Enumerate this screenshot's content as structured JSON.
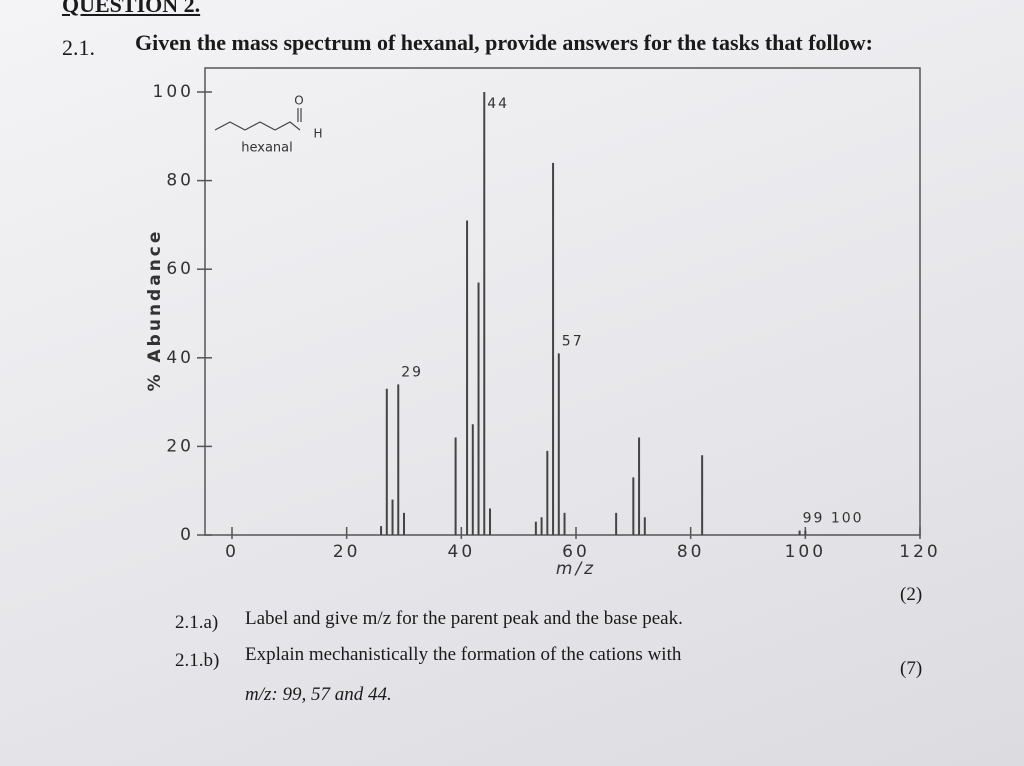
{
  "heading": "QUESTION 2.",
  "item": {
    "number": "2.1.",
    "text": "Given the mass spectrum of hexanal, provide answers for the tasks that follow:"
  },
  "chart_data": {
    "type": "stem",
    "xlabel": "m/z",
    "ylabel": "% Abundance",
    "x": [
      26,
      27,
      28,
      29,
      30,
      39,
      41,
      42,
      43,
      44,
      45,
      53,
      54,
      55,
      56,
      57,
      58,
      67,
      70,
      71,
      72,
      82,
      99,
      100
    ],
    "values": [
      2,
      33,
      8,
      34,
      5,
      22,
      71,
      25,
      57,
      100,
      6,
      3,
      4,
      19,
      84,
      41,
      5,
      5,
      13,
      22,
      4,
      18,
      1,
      1
    ],
    "color": "#444444",
    "xlim": [
      0,
      120
    ],
    "ylim": [
      0,
      100
    ],
    "xticks": [
      0,
      20,
      40,
      60,
      80,
      100,
      120
    ],
    "yticks": [
      0,
      20,
      40,
      60,
      80,
      100
    ],
    "annotations": [
      {
        "text": "29",
        "x": 29
      },
      {
        "text": "44",
        "x": 44
      },
      {
        "text": "57",
        "x": 57
      },
      {
        "text": "99 100",
        "x": 99
      }
    ],
    "structure": {
      "name": "hexanal",
      "atoms": [
        "O",
        "H"
      ]
    }
  },
  "tasks": [
    {
      "number": "2.1.a)",
      "text": "Label and give m/z for the parent peak and the base peak.",
      "marks": "(2)"
    },
    {
      "number": "2.1.b)",
      "text": "Explain mechanistically the formation of the cations with",
      "text2": "m/z: 99, 57 and 44.",
      "marks": "(7)"
    }
  ]
}
